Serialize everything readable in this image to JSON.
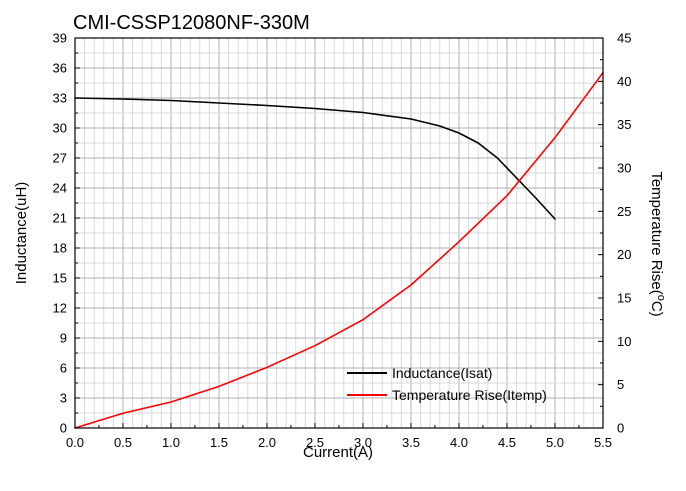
{
  "chart_data": {
    "type": "line",
    "title": "CMI-CSSP12080NF-330M",
    "xlabel": "Current(A)",
    "ylabel": "Inductance(uH)",
    "y2label_main": "Temperature Rise(",
    "y2label_sup": "o",
    "y2label_end": "C)",
    "xlim": [
      0,
      5.5
    ],
    "ylim": [
      0,
      39
    ],
    "y2lim": [
      0,
      45
    ],
    "xticks": [
      0.0,
      0.5,
      1.0,
      1.5,
      2.0,
      2.5,
      3.0,
      3.5,
      4.0,
      4.5,
      5.0,
      5.5
    ],
    "yticks": [
      0,
      3,
      6,
      9,
      12,
      15,
      18,
      21,
      24,
      27,
      30,
      33,
      36,
      39
    ],
    "y2ticks": [
      0,
      5,
      10,
      15,
      20,
      25,
      30,
      35,
      40,
      45
    ],
    "grid": true,
    "legend_position": "bottom-right",
    "series": [
      {
        "name": "Inductance(Isat)",
        "axis": "left",
        "color": "#000000",
        "x": [
          0,
          0.5,
          1.0,
          1.5,
          2.0,
          2.5,
          3.0,
          3.5,
          3.8,
          4.0,
          4.2,
          4.4,
          4.6,
          4.8,
          5.0
        ],
        "y": [
          33.0,
          32.9,
          32.75,
          32.5,
          32.25,
          31.95,
          31.55,
          30.9,
          30.2,
          29.5,
          28.5,
          27.0,
          25.0,
          23.0,
          20.9
        ]
      },
      {
        "name": "Temperature Rise(Itemp)",
        "axis": "right",
        "color": "#ff0000",
        "x": [
          0,
          0.5,
          1.0,
          1.5,
          2.0,
          2.5,
          3.0,
          3.5,
          4.0,
          4.5,
          5.0,
          5.5
        ],
        "y": [
          0,
          1.7,
          3.0,
          4.8,
          7.0,
          9.5,
          12.5,
          16.5,
          21.5,
          26.8,
          33.5,
          41.0
        ]
      }
    ]
  }
}
